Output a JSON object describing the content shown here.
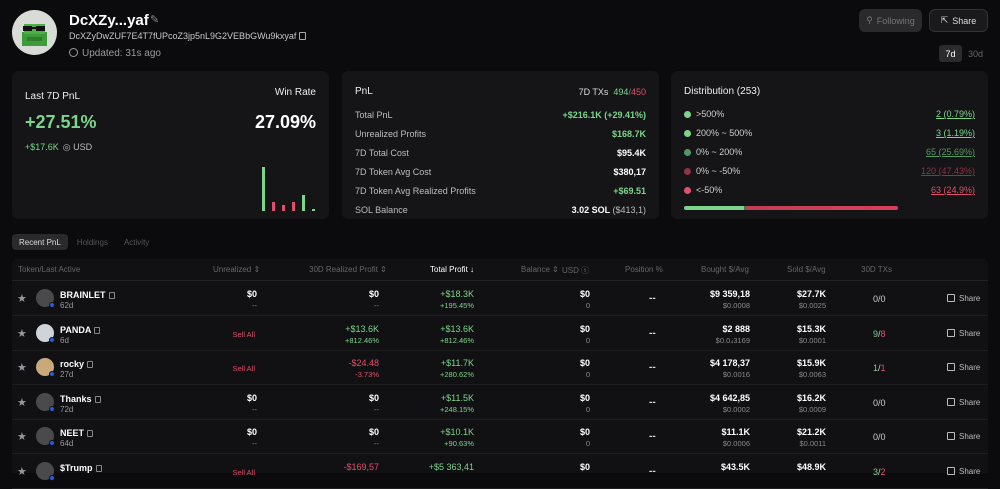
{
  "wallet": {
    "name": "DcXZy...yaf",
    "address": "DcXZyDwZUF7E4T7fUPcoZ3jp5nL9G2VEBbGWu9kxyaf",
    "updated": "Updated: 31s ago"
  },
  "buttons": {
    "following": "Following",
    "share": "Share"
  },
  "ranges": [
    "7d",
    "30d"
  ],
  "summary": {
    "label": "Last 7D PnL",
    "pnl_pct": "+27.51%",
    "pnl_usd": "+$17.6K",
    "usd_label": "USD",
    "win_rate_label": "Win Rate",
    "win_rate": "27.09%",
    "mini_bars": [
      {
        "value": 44,
        "color": "#7bd68b"
      },
      {
        "value": 9,
        "color": "#e0506a"
      },
      {
        "value": 6,
        "color": "#e0506a"
      },
      {
        "value": 9,
        "color": "#e0506a"
      },
      {
        "value": 16,
        "color": "#7bd68b"
      },
      {
        "value": 2,
        "color": "#7bd68b"
      }
    ]
  },
  "pnl": {
    "title": "PnL",
    "txs_label": "7D TXs",
    "txs_win": "494",
    "txs_sep": "/",
    "txs_loss": "450",
    "rows": [
      {
        "label": "Total PnL",
        "value": "+$216.1K (+29.41%)",
        "green": true
      },
      {
        "label": "Unrealized Profits",
        "value": "$168.7K",
        "green": true
      },
      {
        "label": "7D Total Cost",
        "value": "$95.4K",
        "green": false
      },
      {
        "label": "7D Token Avg Cost",
        "value": "$380,17",
        "green": false
      },
      {
        "label": "7D Token Avg Realized Profits",
        "value": "+$69.51",
        "green": true
      },
      {
        "label": "SOL Balance",
        "value": "3.02 SOL",
        "extra": "($413,1)",
        "green": false
      }
    ]
  },
  "distribution": {
    "title": "Distribution (253)",
    "rows": [
      {
        "label": ">500%",
        "value": "2 (0.79%)",
        "color": "#7bd68b"
      },
      {
        "label": "200% ~ 500%",
        "value": "3 (1.19%)",
        "color": "#7bd68b"
      },
      {
        "label": "0% ~ 200%",
        "value": "65 (25.69%)",
        "color": "#4f9b63"
      },
      {
        "label": "0% ~ -50%",
        "value": "120 (47.43%)",
        "color": "#8e3446"
      },
      {
        "label": "<-50%",
        "value": "63 (24.9%)",
        "color": "#e0506a"
      }
    ]
  },
  "tabs": [
    "Recent PnL",
    "Holdings",
    "Activity"
  ],
  "table": {
    "headers": {
      "token": "Token/Last Active",
      "unrealized": "Unrealized",
      "realized": "30D Realized Profit",
      "total": "Total Profit",
      "balance": "Balance",
      "usd": "USD",
      "position": "Position %",
      "bought": "Bought $/Avg",
      "sold": "Sold $/Avg",
      "txs": "30D TXs"
    },
    "rows": [
      {
        "name": "BRAINLET",
        "age": "62d",
        "unreal1": "$0",
        "unreal2": "--",
        "sell": "",
        "real1": "$0",
        "real2": "--",
        "realc": "w",
        "total1": "+$18.3K",
        "total2": "+195.45%",
        "bal1": "$0",
        "bal2": "0",
        "pos": "--",
        "bought1": "$9 359,18",
        "bought2": "$0.0008",
        "sold1": "$27.7K",
        "sold2": "$0.0025",
        "tx_w": "0",
        "tx_l": "0",
        "share": "Share"
      },
      {
        "name": "PANDA",
        "age": "6d",
        "unreal1": "",
        "unreal2": "",
        "sell": "Sell All",
        "real1": "+$13.6K",
        "real2": "+812.46%",
        "realc": "g",
        "total1": "+$13.6K",
        "total2": "+812.46%",
        "bal1": "$0",
        "bal2": "0",
        "pos": "--",
        "bought1": "$2 888",
        "bought2": "$0.0₄3169",
        "sold1": "$15.3K",
        "sold2": "$0.0001",
        "tx_w": "9",
        "tx_l": "8",
        "share": "Share"
      },
      {
        "name": "rocky",
        "age": "27d",
        "unreal1": "",
        "unreal2": "",
        "sell": "Sell All",
        "real1": "-$24.48",
        "real2": "-3.73%",
        "realc": "rd",
        "total1": "+$11.7K",
        "total2": "+280.62%",
        "bal1": "$0",
        "bal2": "0",
        "pos": "--",
        "bought1": "$4 178,37",
        "bought2": "$0.0016",
        "sold1": "$15.9K",
        "sold2": "$0.0063",
        "tx_w": "1",
        "tx_l": "1",
        "share": "Share"
      },
      {
        "name": "Thanks",
        "age": "72d",
        "unreal1": "$0",
        "unreal2": "--",
        "sell": "",
        "real1": "$0",
        "real2": "--",
        "realc": "w",
        "total1": "+$11.5K",
        "total2": "+248.15%",
        "bal1": "$0",
        "bal2": "0",
        "pos": "--",
        "bought1": "$4 642,85",
        "bought2": "$0.0002",
        "sold1": "$16.2K",
        "sold2": "$0.0009",
        "tx_w": "0",
        "tx_l": "0",
        "share": "Share"
      },
      {
        "name": "NEET",
        "age": "64d",
        "unreal1": "$0",
        "unreal2": "--",
        "sell": "",
        "real1": "$0",
        "real2": "--",
        "realc": "w",
        "total1": "+$10.1K",
        "total2": "+90.63%",
        "bal1": "$0",
        "bal2": "0",
        "pos": "--",
        "bought1": "$11.1K",
        "bought2": "$0.0006",
        "sold1": "$21.2K",
        "sold2": "$0.0011",
        "tx_w": "0",
        "tx_l": "0",
        "share": "Share"
      },
      {
        "name": "$Trump",
        "age": "",
        "unreal1": "",
        "unreal2": "",
        "sell": "Sell All",
        "real1": "-$169,57",
        "real2": "",
        "realc": "rd",
        "total1": "+$5 363,41",
        "total2": "",
        "bal1": "$0",
        "bal2": "",
        "pos": "--",
        "bought1": "$43.5K",
        "bought2": "",
        "sold1": "$48.9K",
        "sold2": "",
        "tx_w": "3",
        "tx_l": "2",
        "share": "Share"
      }
    ]
  }
}
